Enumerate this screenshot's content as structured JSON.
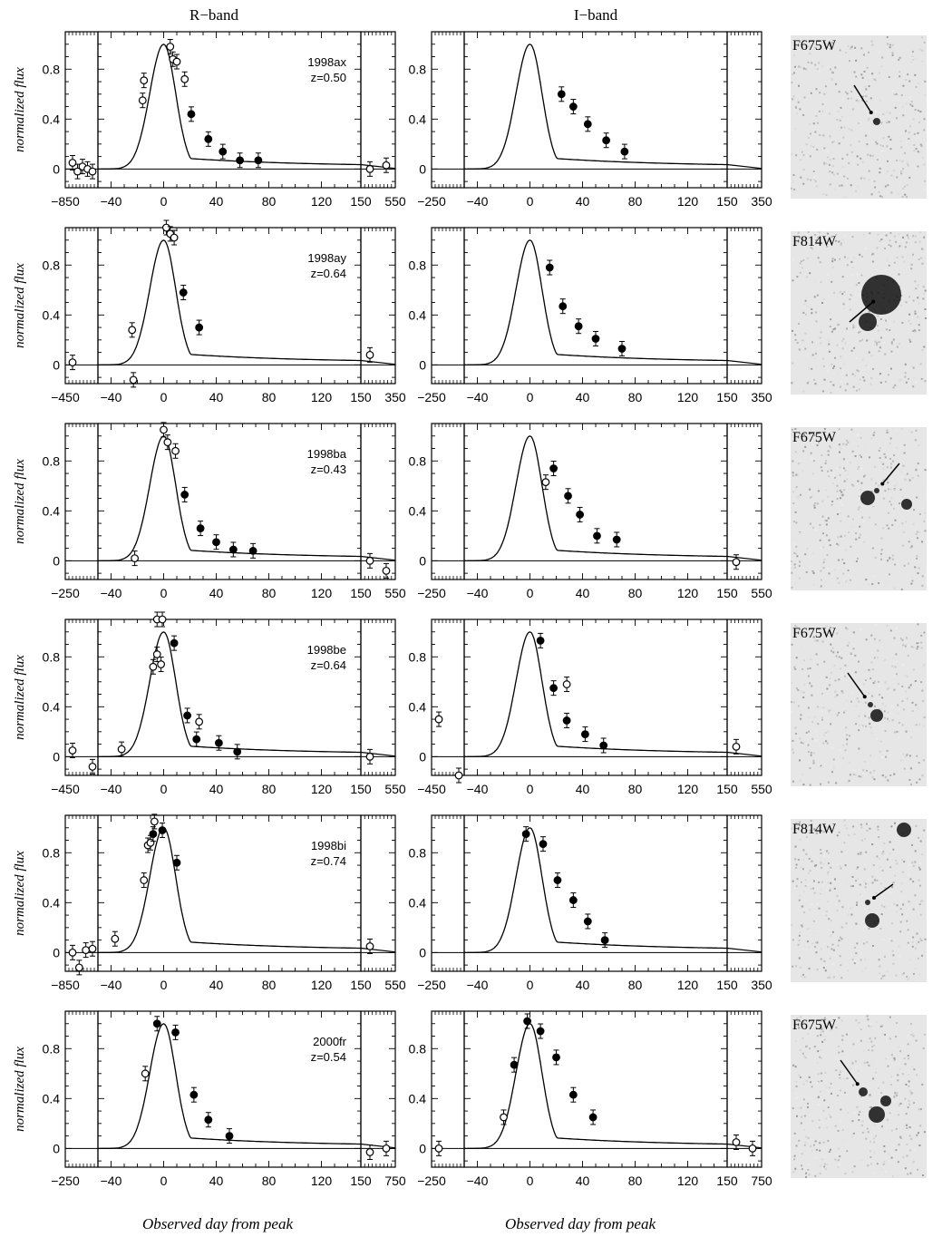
{
  "titles": {
    "r_band": "R−band",
    "i_band": "I−band"
  },
  "xlabel": "Observed day from peak",
  "ylabel": "normalized flux",
  "ytick_labels": [
    "0",
    "0.4",
    "0.8"
  ],
  "main_x_ticks": [
    "−40",
    "0",
    "40",
    "80",
    "120"
  ],
  "main_xlim": [
    -50,
    150
  ],
  "ylim": [
    -0.15,
    1.1
  ],
  "chart_data": [
    {
      "type": "line",
      "supernova": "1998ax",
      "redshift": "z=0.50",
      "filter": "F675W",
      "R": {
        "left_label": "−850",
        "right_labels": [
          "150",
          "550"
        ],
        "open": [
          [
            -16,
            0.55
          ],
          [
            -15,
            0.71
          ],
          [
            5,
            0.98
          ],
          [
            7,
            0.88
          ],
          [
            10,
            0.86
          ],
          [
            16,
            0.72
          ]
        ],
        "filled": [
          [
            21,
            0.44
          ],
          [
            34,
            0.24
          ],
          [
            45,
            0.14
          ],
          [
            58,
            0.07
          ],
          [
            72,
            0.07
          ]
        ],
        "left_open": [
          0.05,
          -0.02,
          0.02,
          0.0,
          -0.02
        ],
        "right_open": [
          0.0,
          0.03
        ]
      },
      "I": {
        "left_label": "−250",
        "right_labels": [
          "150",
          "350"
        ],
        "open": [],
        "filled": [
          [
            24,
            0.6
          ],
          [
            33,
            0.5
          ],
          [
            44,
            0.36
          ],
          [
            58,
            0.23
          ],
          [
            72,
            0.14
          ]
        ],
        "left_open": [],
        "right_open": []
      }
    },
    {
      "type": "line",
      "supernova": "1998ay",
      "redshift": "z=0.64",
      "filter": "F814W",
      "R": {
        "left_label": "−450",
        "right_labels": [
          "150",
          "350"
        ],
        "open": [
          [
            -24,
            0.28
          ],
          [
            -23,
            -0.12
          ],
          [
            2,
            1.1
          ],
          [
            5,
            1.05
          ],
          [
            8,
            1.02
          ]
        ],
        "filled": [
          [
            15,
            0.58
          ],
          [
            27,
            0.3
          ]
        ],
        "left_open": [
          0.02
        ],
        "right_open": [
          0.08
        ]
      },
      "I": {
        "left_label": "−250",
        "right_labels": [
          "150",
          "350"
        ],
        "open": [],
        "filled": [
          [
            15,
            0.78
          ],
          [
            25,
            0.47
          ],
          [
            37,
            0.31
          ],
          [
            50,
            0.21
          ],
          [
            70,
            0.13
          ]
        ],
        "left_open": [],
        "right_open": []
      }
    },
    {
      "type": "line",
      "supernova": "1998ba",
      "redshift": "z=0.43",
      "filter": "F675W",
      "R": {
        "left_label": "−250",
        "right_labels": [
          "150",
          "550"
        ],
        "open": [
          [
            -22,
            0.02
          ],
          [
            0,
            1.05
          ],
          [
            3,
            0.95
          ],
          [
            9,
            0.88
          ]
        ],
        "filled": [
          [
            16,
            0.53
          ],
          [
            28,
            0.26
          ],
          [
            40,
            0.15
          ],
          [
            53,
            0.09
          ],
          [
            68,
            0.08
          ]
        ],
        "left_open": [],
        "right_open": [
          0.0,
          -0.08
        ]
      },
      "I": {
        "left_label": "−250",
        "right_labels": [
          "150",
          "550"
        ],
        "open": [
          [
            12,
            0.63
          ]
        ],
        "filled": [
          [
            18,
            0.74
          ],
          [
            29,
            0.52
          ],
          [
            38,
            0.37
          ],
          [
            51,
            0.2
          ],
          [
            66,
            0.17
          ]
        ],
        "left_open": [],
        "right_open": [
          -0.01
        ]
      }
    },
    {
      "type": "line",
      "supernova": "1998be",
      "redshift": "z=0.64",
      "filter": "F675W",
      "R": {
        "left_label": "−450",
        "right_labels": [
          "150",
          "550"
        ],
        "open": [
          [
            -32,
            0.06
          ],
          [
            -8,
            0.72
          ],
          [
            -5,
            1.1
          ],
          [
            -5,
            0.82
          ],
          [
            -2,
            0.74
          ],
          [
            -1,
            1.1
          ],
          [
            27,
            0.28
          ]
        ],
        "filled": [
          [
            8,
            0.91
          ],
          [
            18,
            0.33
          ],
          [
            25,
            0.14
          ],
          [
            42,
            0.11
          ],
          [
            56,
            0.04
          ]
        ],
        "left_open": [
          0.05,
          -0.08
        ],
        "right_open": [
          0.0
        ]
      },
      "I": {
        "left_label": "−450",
        "right_labels": [
          "150",
          "550"
        ],
        "open": [
          [
            28,
            0.58
          ]
        ],
        "filled": [
          [
            8,
            0.93
          ],
          [
            18,
            0.55
          ],
          [
            28,
            0.29
          ],
          [
            42,
            0.18
          ],
          [
            56,
            0.09
          ]
        ],
        "left_open": [
          0.3,
          -0.15
        ],
        "right_open": [
          0.08
        ]
      }
    },
    {
      "type": "line",
      "supernova": "1998bi",
      "redshift": "z=0.74",
      "filter": "F814W",
      "R": {
        "left_label": "−850",
        "right_labels": [
          "150",
          "550"
        ],
        "open": [
          [
            -37,
            0.11
          ],
          [
            -15,
            0.58
          ],
          [
            -12,
            0.86
          ],
          [
            -10,
            0.88
          ],
          [
            -7,
            1.05
          ]
        ],
        "filled": [
          [
            -8,
            0.95
          ],
          [
            -1,
            0.98
          ],
          [
            10,
            0.72
          ]
        ],
        "left_open": [
          0.0,
          -0.12,
          0.02,
          0.03
        ],
        "right_open": [
          0.05
        ]
      },
      "I": {
        "left_label": "−250",
        "right_labels": [
          "150",
          "350"
        ],
        "open": [],
        "filled": [
          [
            -3,
            0.95
          ],
          [
            10,
            0.87
          ],
          [
            21,
            0.58
          ],
          [
            33,
            0.42
          ],
          [
            44,
            0.25
          ],
          [
            57,
            0.1
          ]
        ],
        "left_open": [],
        "right_open": []
      }
    },
    {
      "type": "line",
      "supernova": "2000fr",
      "redshift": "z=0.54",
      "filter": "F675W",
      "R": {
        "left_label": "−250",
        "right_labels": [
          "150",
          "750"
        ],
        "open": [
          [
            -14,
            0.6
          ]
        ],
        "filled": [
          [
            -5,
            1.0
          ],
          [
            9,
            0.93
          ],
          [
            23,
            0.43
          ],
          [
            34,
            0.23
          ],
          [
            50,
            0.1
          ]
        ],
        "left_open": [],
        "right_open": [
          -0.03,
          0.0
        ]
      },
      "I": {
        "left_label": "−250",
        "right_labels": [
          "150",
          "750"
        ],
        "open": [
          [
            -20,
            0.25
          ]
        ],
        "filled": [
          [
            -12,
            0.67
          ],
          [
            -2,
            1.02
          ],
          [
            8,
            0.94
          ],
          [
            20,
            0.73
          ],
          [
            33,
            0.43
          ],
          [
            48,
            0.25
          ]
        ],
        "left_open": [
          0.0
        ],
        "right_open": [
          0.05,
          0.0
        ]
      }
    }
  ]
}
